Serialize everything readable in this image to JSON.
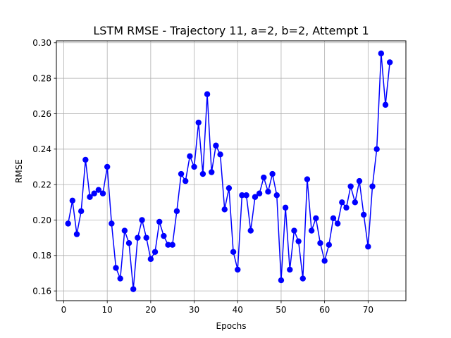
{
  "chart_data": {
    "type": "line",
    "title": "LSTM RMSE - Trajectory 11, a=2, b=2, Attempt 1",
    "xlabel": "Epochs",
    "ylabel": "RMSE",
    "xlim": [
      -1.7,
      78.7
    ],
    "ylim": [
      0.1545,
      0.3011
    ],
    "xticks": [
      0,
      10,
      20,
      30,
      40,
      50,
      60,
      70
    ],
    "yticks": [
      0.16,
      0.18,
      0.2,
      0.22,
      0.24,
      0.26,
      0.28,
      0.3
    ],
    "ytick_labels": [
      "0.16",
      "0.18",
      "0.20",
      "0.22",
      "0.24",
      "0.26",
      "0.28",
      "0.30"
    ],
    "grid": true,
    "series_color": "#0000ff",
    "marker_color": "#0000ff",
    "series": [
      {
        "x": [
          1,
          2,
          3,
          4,
          5,
          6,
          7,
          8,
          9,
          10,
          11,
          12,
          13,
          14,
          15,
          16,
          17,
          18,
          19,
          20,
          21,
          22,
          23,
          24,
          25,
          26,
          27,
          28,
          29,
          30,
          31,
          32,
          33,
          34,
          35,
          36,
          37,
          38,
          39,
          40,
          41,
          42,
          43,
          44,
          45,
          46,
          47,
          48,
          49,
          50,
          51,
          52,
          53,
          54,
          55,
          56,
          57,
          58,
          59,
          60,
          61,
          62,
          63,
          64,
          65,
          66,
          67,
          68,
          69,
          70,
          71,
          72,
          73,
          74,
          75
        ],
        "values": [
          0.198,
          0.211,
          0.192,
          0.205,
          0.234,
          0.213,
          0.215,
          0.217,
          0.215,
          0.23,
          0.198,
          0.173,
          0.167,
          0.194,
          0.187,
          0.161,
          0.19,
          0.2,
          0.19,
          0.178,
          0.182,
          0.199,
          0.191,
          0.186,
          0.186,
          0.205,
          0.226,
          0.222,
          0.236,
          0.23,
          0.255,
          0.226,
          0.271,
          0.227,
          0.242,
          0.237,
          0.206,
          0.218,
          0.182,
          0.172,
          0.214,
          0.214,
          0.194,
          0.213,
          0.215,
          0.224,
          0.216,
          0.226,
          0.214,
          0.166,
          0.207,
          0.172,
          0.194,
          0.188,
          0.167,
          0.223,
          0.194,
          0.201,
          0.187,
          0.177,
          0.186,
          0.201,
          0.198,
          0.21,
          0.207,
          0.219,
          0.21,
          0.222,
          0.203,
          0.185,
          0.219,
          0.24,
          0.294,
          0.265,
          0.289
        ]
      }
    ]
  }
}
